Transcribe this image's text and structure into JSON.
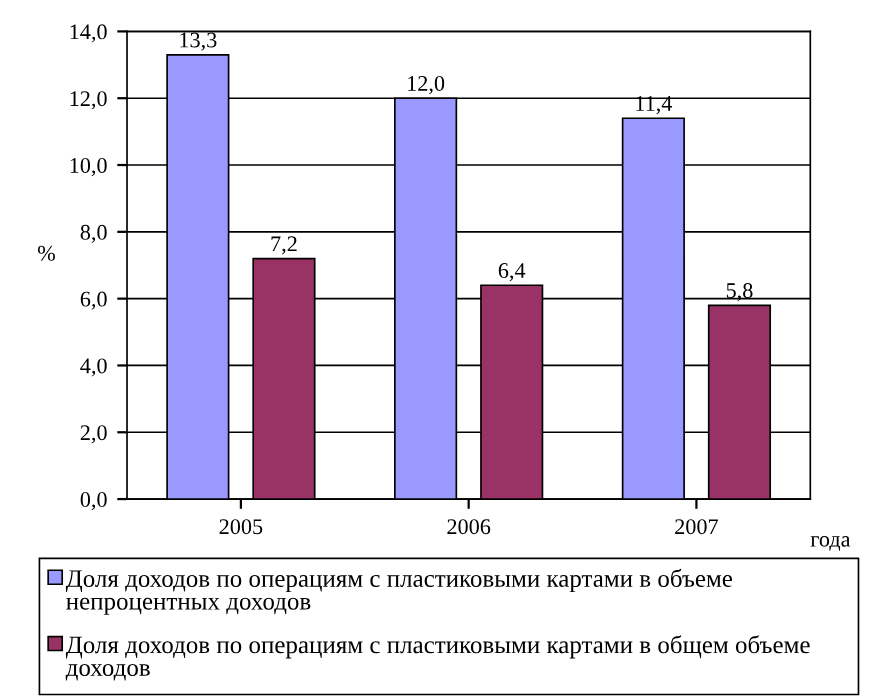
{
  "chart_data": {
    "type": "bar",
    "categories": [
      "2005",
      "2006",
      "2007"
    ],
    "series": [
      {
        "name": "Доля доходов по операциям с пластиковыми картами в объеме непроцентных доходов",
        "color": "#9999ff",
        "values": [
          13.3,
          12.0,
          11.4
        ],
        "value_labels": [
          "13,3",
          "12,0",
          "11,4"
        ]
      },
      {
        "name": "Доля доходов по операциям с пластиковыми картами в общем объеме доходов",
        "color": "#993366",
        "values": [
          7.2,
          6.4,
          5.8
        ],
        "value_labels": [
          "7,2",
          "6,4",
          "5,8"
        ]
      }
    ],
    "ylabel": "%",
    "xlabel": "года",
    "ylim": [
      0,
      14
    ],
    "yticks": [
      {
        "value": 0,
        "label": "0,0"
      },
      {
        "value": 2,
        "label": "2,0"
      },
      {
        "value": 4,
        "label": "4,0"
      },
      {
        "value": 6,
        "label": "6,0"
      },
      {
        "value": 8,
        "label": "8,0"
      },
      {
        "value": 10,
        "label": "10,0"
      },
      {
        "value": 12,
        "label": "12,0"
      },
      {
        "value": 14,
        "label": "14,0"
      }
    ],
    "grid": "y",
    "legend": "bottom"
  }
}
